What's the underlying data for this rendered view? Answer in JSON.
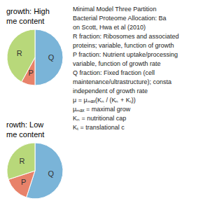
{
  "chart_data": [
    {
      "type": "pie",
      "title": "growth: High\nme content",
      "categories": [
        "Q",
        "P",
        "R"
      ],
      "values": [
        0.5,
        0.08,
        0.42
      ],
      "colors": [
        "#7ab4d8",
        "#e8826a",
        "#b8d87a"
      ],
      "annotations": [
        "Minimal Model Three Partition",
        "Bacterial Proteome Allocation: Ba",
        "on Scott, Hwa et al (2010)",
        "R fraction: Ribosomes and associated",
        "proteins; variable, function of growth",
        "P fraction: Nutrient uptake/processing",
        "variable, function of growth rate",
        "Q fraction: Fixed fraction (cell",
        "maintenance/ultrastructure); consta",
        "independent of growth rate",
        "μ = μₘₐₓ(Kₙ / (Kₙ + Kₜ))",
        "μₘₐₓ = maximal grow",
        "Kₙ = nutritional cap",
        "Kₜ = translational c"
      ]
    },
    {
      "type": "pie",
      "title": "rowth: Low\nme content",
      "categories": [
        "Q",
        "P",
        "R"
      ],
      "values": [
        0.55,
        0.15,
        0.3
      ],
      "colors": [
        "#7ab4d8",
        "#e8826a",
        "#b8d87a"
      ]
    }
  ]
}
